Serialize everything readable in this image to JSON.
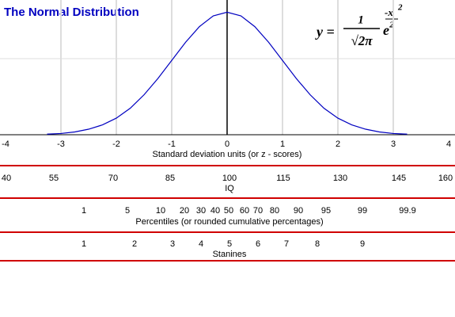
{
  "chart_data": {
    "type": "line",
    "title": "The Normal Distribution",
    "formula": {
      "lhs": "y =",
      "numerator": "1",
      "denominator": "√2π",
      "base": "e",
      "exponent": "-x",
      "exponent_power": "2",
      "exponent_denominator": "2"
    },
    "x": [
      -3.25,
      -3,
      -2.75,
      -2.5,
      -2.25,
      -2,
      -1.75,
      -1.5,
      -1.25,
      -1,
      -0.75,
      -0.5,
      -0.25,
      0,
      0.25,
      0.5,
      0.75,
      1,
      1.25,
      1.5,
      1.75,
      2,
      2.25,
      2.5,
      2.75,
      3,
      3.25
    ],
    "values": [
      0.002,
      0.004,
      0.009,
      0.018,
      0.032,
      0.054,
      0.086,
      0.13,
      0.183,
      0.242,
      0.301,
      0.352,
      0.387,
      0.399,
      0.387,
      0.352,
      0.301,
      0.242,
      0.183,
      0.13,
      0.086,
      0.054,
      0.032,
      0.018,
      0.009,
      0.004,
      0.002
    ],
    "color": "#0000c0",
    "xlim": [
      -4,
      4
    ],
    "ylim": [
      0,
      0.4
    ],
    "xticks": [
      -4,
      -3,
      -2,
      -1,
      0,
      1,
      2,
      3,
      4
    ],
    "grid": true,
    "xlabel": "Standard deviation units (or z - scores)"
  },
  "scales": [
    {
      "label": "IQ",
      "ticks": [
        40,
        55,
        70,
        85,
        100,
        115,
        130,
        145,
        160
      ]
    },
    {
      "label": "Percentiles (or rounded cumulative percentages)",
      "ticks": [
        1,
        5,
        10,
        20,
        30,
        40,
        50,
        60,
        70,
        80,
        90,
        95,
        99,
        99.9
      ]
    },
    {
      "label": "Stanines",
      "ticks": [
        1,
        2,
        3,
        4,
        5,
        6,
        7,
        8,
        9
      ]
    }
  ]
}
